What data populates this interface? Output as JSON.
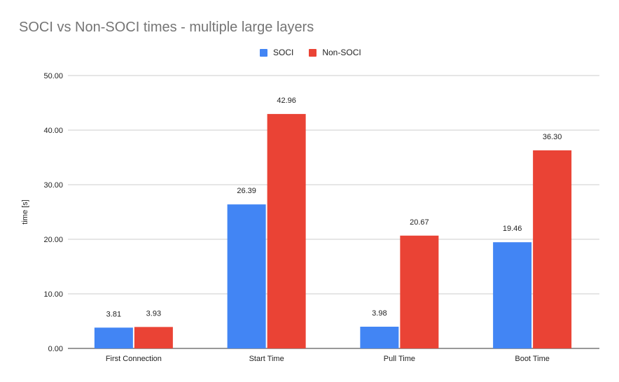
{
  "chart_data": {
    "type": "bar",
    "title": "SOCI vs Non-SOCI times - multiple large layers",
    "xlabel": "",
    "ylabel": "time [s]",
    "ylim": [
      0,
      50
    ],
    "yticks": [
      "0.00",
      "10.00",
      "20.00",
      "30.00",
      "40.00",
      "50.00"
    ],
    "grid": true,
    "legend_position": "top",
    "categories": [
      "First Connection",
      "Start Time",
      "Pull Time",
      "Boot Time"
    ],
    "series": [
      {
        "name": "SOCI",
        "color": "#4285f4",
        "values": [
          3.81,
          26.39,
          3.98,
          19.46
        ],
        "labels": [
          "3.81",
          "26.39",
          "3.98",
          "19.46"
        ]
      },
      {
        "name": "Non-SOCI",
        "color": "#ea4335",
        "values": [
          3.93,
          42.96,
          20.67,
          36.3
        ],
        "labels": [
          "3.93",
          "42.96",
          "20.67",
          "36.30"
        ]
      }
    ]
  }
}
